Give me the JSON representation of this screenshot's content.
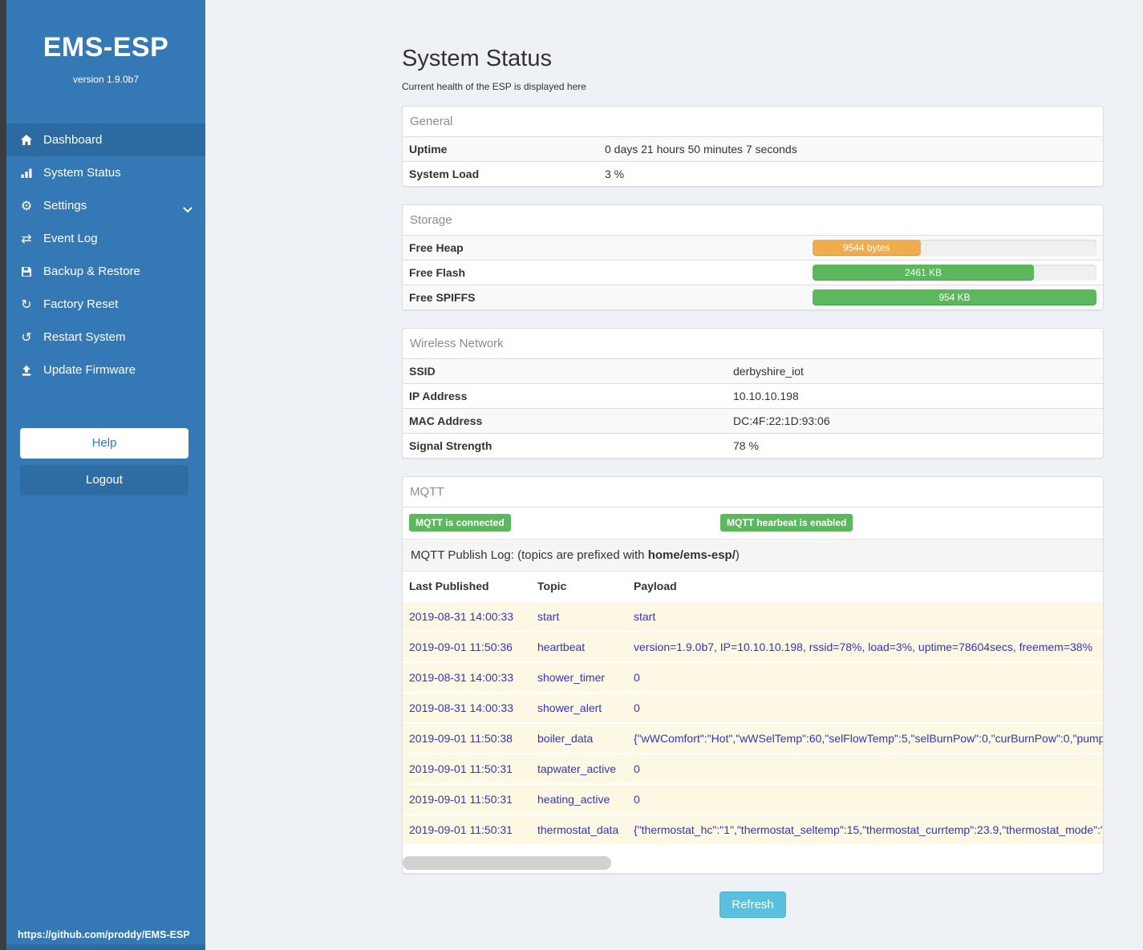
{
  "sidebar": {
    "title": "EMS-ESP",
    "version": "version 1.9.0b7",
    "nav": [
      {
        "label": "Dashboard",
        "icon": "home-icon",
        "active": true,
        "chevron": false
      },
      {
        "label": "System Status",
        "icon": "system-status-icon",
        "active": false,
        "chevron": false
      },
      {
        "label": "Settings",
        "icon": "gear-icon",
        "active": false,
        "chevron": true
      },
      {
        "label": "Event Log",
        "icon": "event-log-icon",
        "active": false,
        "chevron": false
      },
      {
        "label": "Backup & Restore",
        "icon": "save-icon",
        "active": false,
        "chevron": false
      },
      {
        "label": "Factory Reset",
        "icon": "factory-reset-icon",
        "active": false,
        "chevron": false
      },
      {
        "label": "Restart System",
        "icon": "restart-icon",
        "active": false,
        "chevron": false
      },
      {
        "label": "Update Firmware",
        "icon": "upload-icon",
        "active": false,
        "chevron": false
      }
    ],
    "help_label": "Help",
    "logout_label": "Logout",
    "footer_link": "https://github.com/proddy/EMS-ESP"
  },
  "page": {
    "title": "System Status",
    "subtitle": "Current health of the ESP is displayed here"
  },
  "general": {
    "heading": "General",
    "rows": [
      {
        "label": "Uptime",
        "value": "0 days 21 hours 50 minutes 7 seconds"
      },
      {
        "label": "System Load",
        "value": "3 %"
      }
    ]
  },
  "storage": {
    "heading": "Storage",
    "rows": [
      {
        "label": "Free Heap",
        "bar_label": "9544 bytes",
        "percent": 38,
        "color": "#f0ad4e"
      },
      {
        "label": "Free Flash",
        "bar_label": "2461 KB",
        "percent": 78,
        "color": "#5cb85c"
      },
      {
        "label": "Free SPIFFS",
        "bar_label": "954 KB",
        "percent": 100,
        "color": "#5cb85c"
      }
    ]
  },
  "wireless": {
    "heading": "Wireless Network",
    "rows": [
      {
        "label": "SSID",
        "value": "derbyshire_iot"
      },
      {
        "label": "IP Address",
        "value": "10.10.10.198"
      },
      {
        "label": "MAC Address",
        "value": "DC:4F:22:1D:93:06"
      },
      {
        "label": "Signal Strength",
        "value": "78 %"
      }
    ]
  },
  "mqtt": {
    "heading": "MQTT",
    "badges": [
      "MQTT is connected",
      "MQTT hearbeat is enabled"
    ],
    "publish_log": {
      "prefix": "MQTT Publish Log: (topics are prefixed with ",
      "bold": "home/ems-esp/",
      "suffix": ")"
    },
    "table": {
      "headers": [
        "Last Published",
        "Topic",
        "Payload"
      ],
      "rows": [
        {
          "time": "2019-08-31 14:00:33",
          "topic": "start",
          "payload": "start"
        },
        {
          "time": "2019-09-01 11:50:36",
          "topic": "heartbeat",
          "payload": "version=1.9.0b7, IP=10.10.10.198, rssid=78%, load=3%, uptime=78604secs, freemem=38%"
        },
        {
          "time": "2019-08-31 14:00:33",
          "topic": "shower_timer",
          "payload": "0"
        },
        {
          "time": "2019-08-31 14:00:33",
          "topic": "shower_alert",
          "payload": "0"
        },
        {
          "time": "2019-09-01 11:50:38",
          "topic": "boiler_data",
          "payload": "{\"wWComfort\":\"Hot\",\"wWSelTemp\":60,\"selFlowTemp\":5,\"selBurnPow\":0,\"curBurnPow\":0,\"pump"
        },
        {
          "time": "2019-09-01 11:50:31",
          "topic": "tapwater_active",
          "payload": "0"
        },
        {
          "time": "2019-09-01 11:50:31",
          "topic": "heating_active",
          "payload": "0"
        },
        {
          "time": "2019-09-01 11:50:31",
          "topic": "thermostat_data",
          "payload": "{\"thermostat_hc\":\"1\",\"thermostat_seltemp\":15,\"thermostat_currtemp\":23.9,\"thermostat_mode\":\""
        }
      ]
    }
  },
  "refresh_label": "Refresh",
  "colors": {
    "sidebar": "#3478b6",
    "sidebar_active": "#2c6ba2",
    "success_green": "#5cb85c",
    "warning_orange": "#f0ad4e",
    "info_blue": "#5bc0de",
    "log_text_blue": "#3333cc",
    "log_row_beige": "#fdf8e4"
  }
}
